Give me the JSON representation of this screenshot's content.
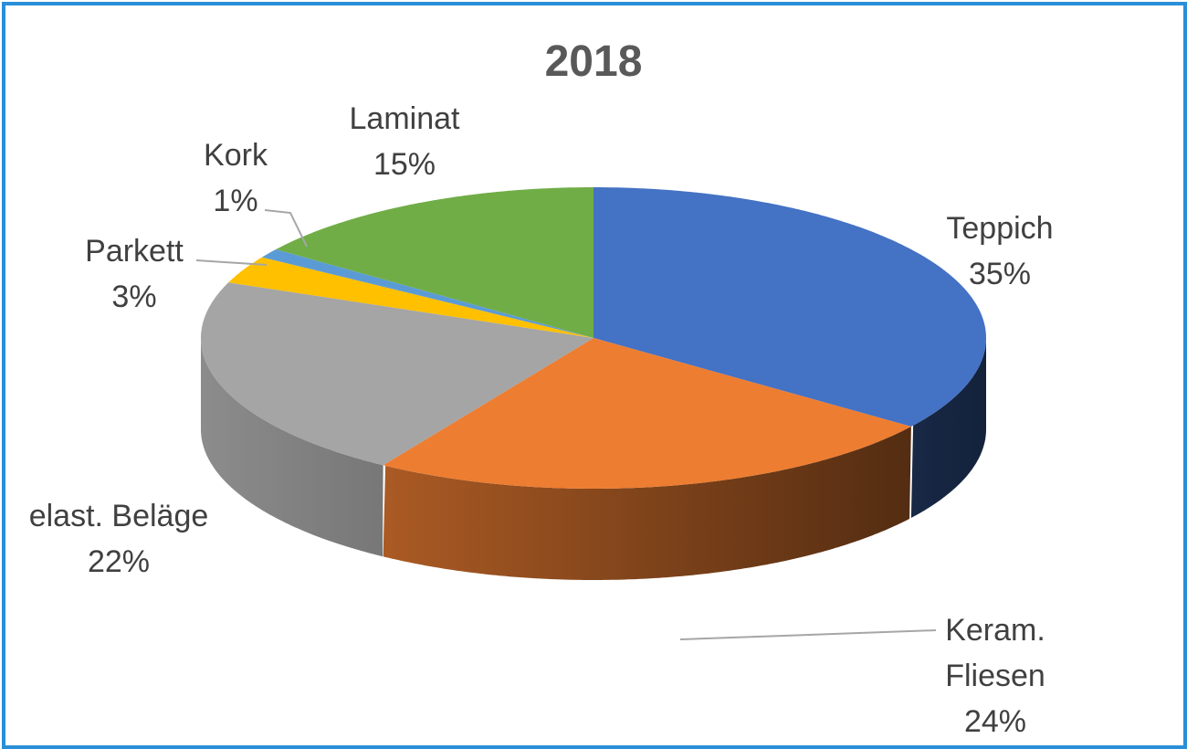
{
  "chart_data": {
    "type": "pie3d",
    "title": "2018",
    "categories": [
      "Teppich",
      "Keram. Fliesen",
      "elast. Beläge",
      "Parkett",
      "Kork",
      "Laminat"
    ],
    "values": [
      35,
      24,
      22,
      3,
      1,
      15
    ],
    "value_labels": [
      "35%",
      "24%",
      "22%",
      "3%",
      "1%",
      "15%"
    ],
    "colors": [
      "#4472c4",
      "#ed7d31",
      "#a5a5a5",
      "#ffc000",
      "#5b9bd5",
      "#70ad47"
    ]
  }
}
